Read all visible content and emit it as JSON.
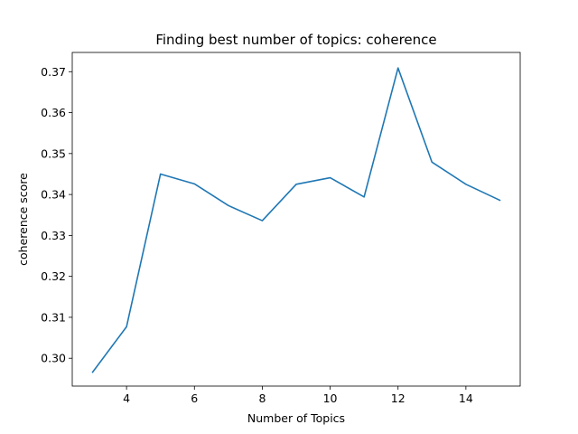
{
  "chart_data": {
    "type": "line",
    "title": "Finding best number of topics:  coherence",
    "xlabel": "Number of Topics",
    "ylabel": "coherence score",
    "xlim": [
      2.4,
      15.6
    ],
    "ylim": [
      0.2932,
      0.3747
    ],
    "xticks": [
      4,
      6,
      8,
      10,
      12,
      14
    ],
    "yticks": [
      0.3,
      0.31,
      0.32,
      0.33,
      0.34,
      0.35,
      0.36,
      0.37
    ],
    "ytick_labels": [
      "0.30",
      "0.31",
      "0.32",
      "0.33",
      "0.34",
      "0.35",
      "0.36",
      "0.37"
    ],
    "grid": false,
    "legend": "none",
    "series": [
      {
        "color": "#1f77b4",
        "x": [
          3,
          4,
          5,
          6,
          7,
          8,
          9,
          10,
          11,
          12,
          13,
          14,
          15
        ],
        "y": [
          0.2966,
          0.3077,
          0.345,
          0.3426,
          0.3373,
          0.3336,
          0.3425,
          0.3441,
          0.3394,
          0.3709,
          0.3479,
          0.3425,
          0.3386
        ]
      }
    ]
  }
}
